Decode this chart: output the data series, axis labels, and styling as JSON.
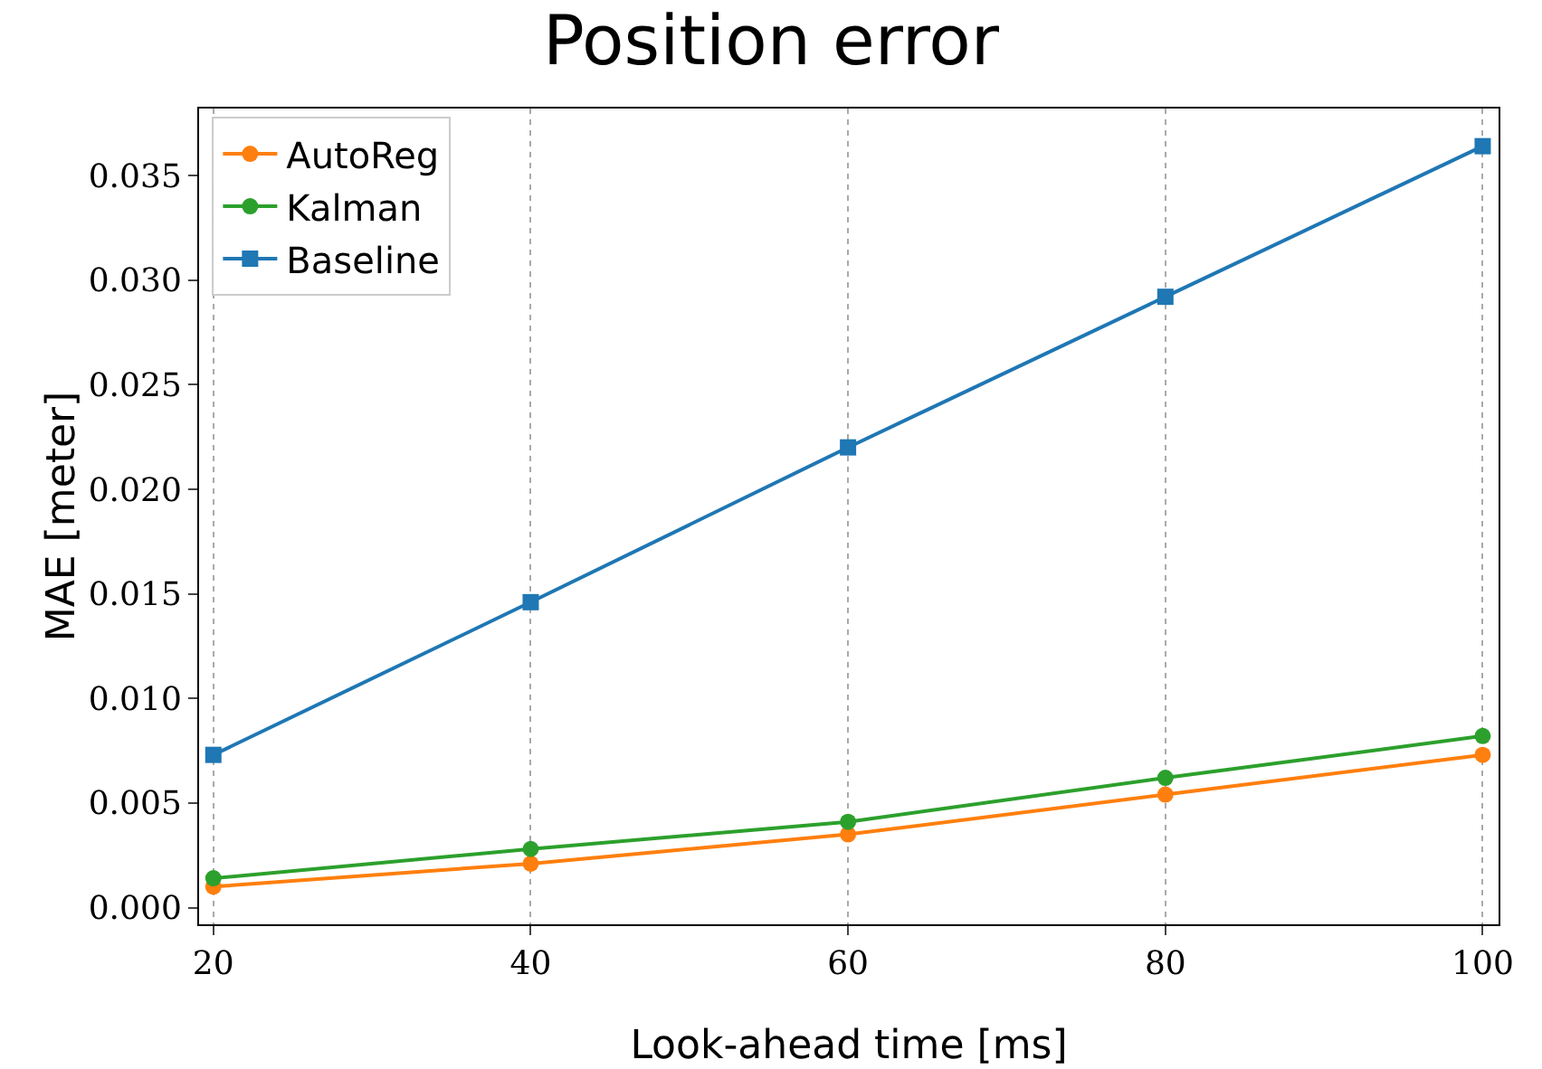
{
  "chart_data": {
    "type": "line",
    "title": "Position error",
    "xlabel": "Look-ahead time [ms]",
    "ylabel": "MAE [meter]",
    "x": [
      20,
      40,
      60,
      80,
      100
    ],
    "series": [
      {
        "name": "AutoReg",
        "color": "#ff7f0e",
        "marker": "circle",
        "values": [
          0.001,
          0.0021,
          0.0035,
          0.0054,
          0.0073
        ]
      },
      {
        "name": "Kalman",
        "color": "#2ca02c",
        "marker": "circle",
        "values": [
          0.0014,
          0.0028,
          0.0041,
          0.0062,
          0.0082
        ]
      },
      {
        "name": "Baseline",
        "color": "#1f77b4",
        "marker": "square",
        "values": [
          0.0073,
          0.0146,
          0.022,
          0.0292,
          0.0364
        ]
      }
    ],
    "xlim": [
      19.1,
      101
    ],
    "xticks": [
      20,
      40,
      60,
      80,
      100
    ],
    "ylim": [
      -0.0008,
      0.0382
    ],
    "yticks": [
      {
        "value": 0,
        "label": "0.000"
      },
      {
        "value": 0.005,
        "label": "0.005"
      },
      {
        "value": 0.01,
        "label": "0.010"
      },
      {
        "value": 0.015,
        "label": "0.015"
      },
      {
        "value": 0.02,
        "label": "0.020"
      },
      {
        "value": 0.025,
        "label": "0.025"
      },
      {
        "value": 0.03,
        "label": "0.030"
      },
      {
        "value": 0.035,
        "label": "0.035"
      }
    ],
    "grid": "x",
    "legend": "top left",
    "line_style": "solid"
  }
}
